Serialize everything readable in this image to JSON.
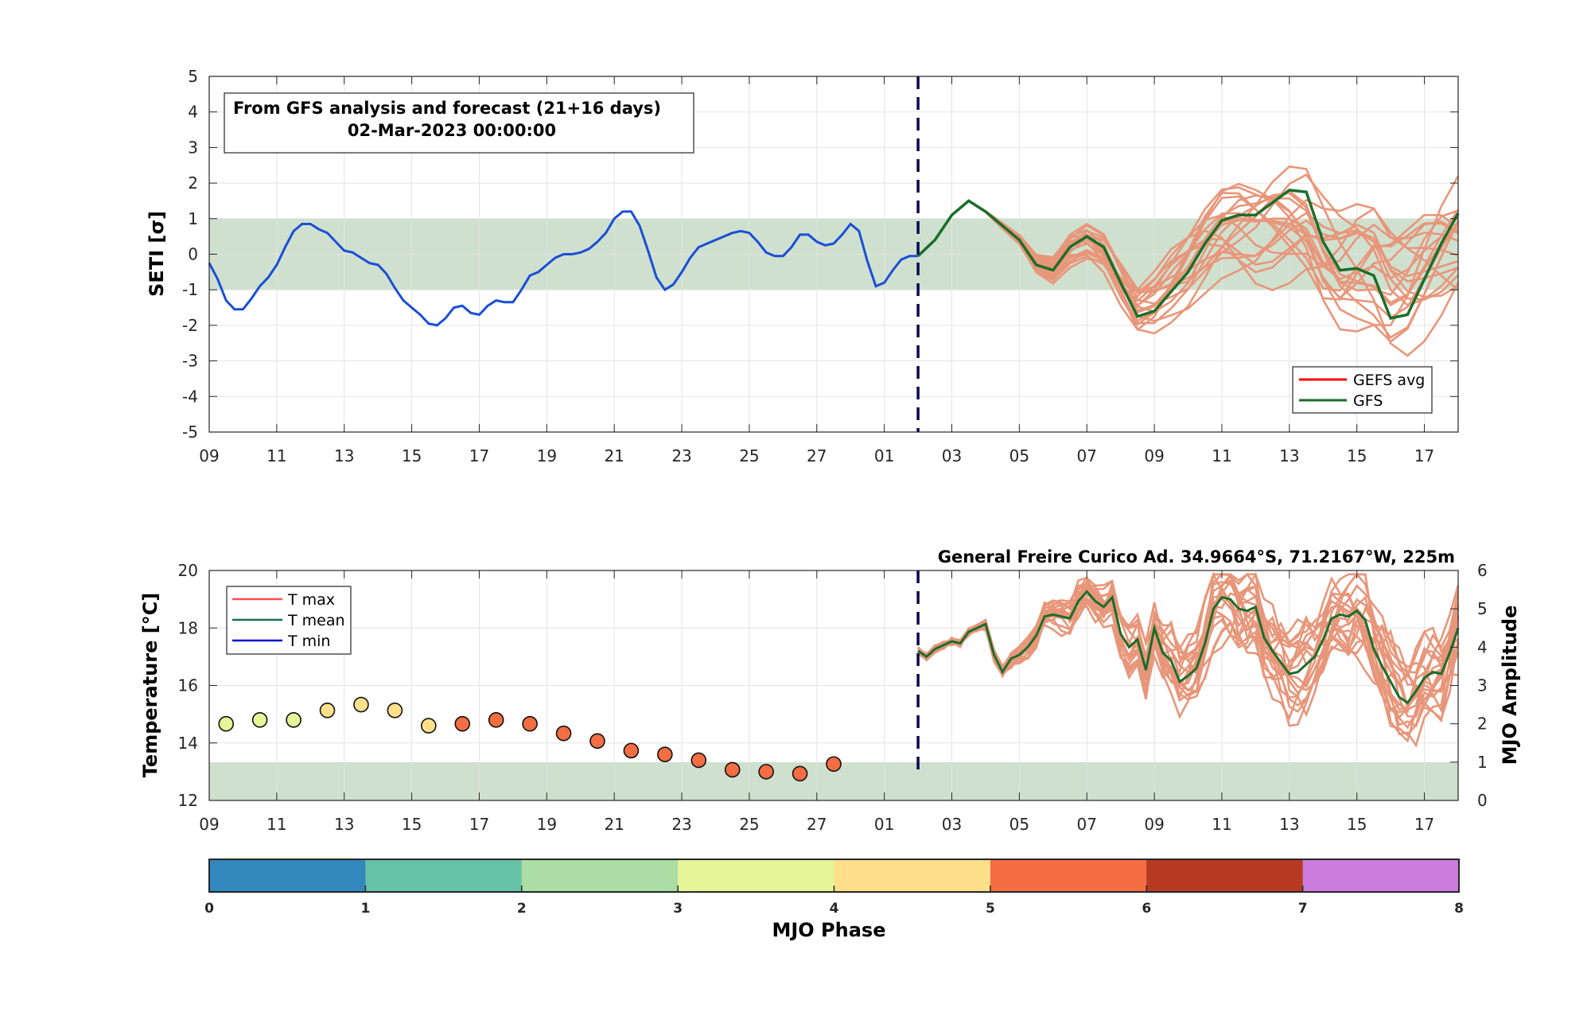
{
  "colors": {
    "band": "#cfe0cf",
    "analysis": "#1a4fd6",
    "ensemble": "#e8967a",
    "gfs": "#1b6e2a",
    "gefs_avg": "#ff0000",
    "now_line": "#0a0a50",
    "tmax": "#ff4d4d",
    "tmean": "#1a6e5a",
    "tmin": "#0000cc",
    "grid": "#e3e3e3"
  },
  "chart_data": [
    {
      "type": "line",
      "title_box": {
        "line1": "From GFS analysis and forecast (21+16 days)",
        "line2": "02-Mar-2023 00:00:00"
      },
      "ylabel": "SETI [σ]",
      "ylim": [
        -5,
        5
      ],
      "yticks": [
        "5",
        "4",
        "3",
        "2",
        "1",
        "0",
        "-1",
        "-2",
        "-3",
        "-4",
        "-5"
      ],
      "xlim_days": [
        0,
        37
      ],
      "xtick_labels": [
        "09",
        "11",
        "13",
        "15",
        "17",
        "19",
        "21",
        "23",
        "25",
        "27",
        "01",
        "03",
        "05",
        "07",
        "09",
        "11",
        "13",
        "15",
        "17"
      ],
      "band": [
        -1,
        1
      ],
      "forecast_start_day": 21,
      "legend": [
        "GEFS avg",
        "GFS"
      ],
      "analysis": {
        "x": [
          0,
          0.25,
          0.5,
          0.75,
          1,
          1.25,
          1.5,
          1.75,
          2,
          2.25,
          2.5,
          2.75,
          3,
          3.25,
          3.5,
          3.75,
          4,
          4.25,
          4.5,
          4.75,
          5,
          5.25,
          5.5,
          5.75,
          6,
          6.25,
          6.5,
          6.75,
          7,
          7.25,
          7.5,
          7.75,
          8,
          8.25,
          8.5,
          8.75,
          9,
          9.25,
          9.5,
          9.75,
          10,
          10.25,
          10.5,
          10.75,
          11,
          11.25,
          11.5,
          11.75,
          12,
          12.25,
          12.5,
          12.75,
          13,
          13.25,
          13.5,
          13.75,
          14,
          14.25,
          14.5,
          14.75,
          15,
          15.25,
          15.5,
          15.75,
          16,
          16.25,
          16.5,
          16.75,
          17,
          17.25,
          17.5,
          17.75,
          18,
          18.25,
          18.5,
          18.75,
          19,
          19.25,
          19.5,
          19.75,
          20,
          20.25,
          20.5,
          20.75,
          21
        ],
        "y": [
          -0.25,
          -0.7,
          -1.3,
          -1.55,
          -1.55,
          -1.25,
          -0.9,
          -0.65,
          -0.3,
          0.2,
          0.65,
          0.85,
          0.85,
          0.7,
          0.6,
          0.35,
          0.1,
          0.05,
          -0.1,
          -0.25,
          -0.3,
          -0.55,
          -0.95,
          -1.3,
          -1.5,
          -1.7,
          -1.95,
          -2.0,
          -1.8,
          -1.5,
          -1.45,
          -1.65,
          -1.7,
          -1.45,
          -1.3,
          -1.35,
          -1.35,
          -1.0,
          -0.6,
          -0.5,
          -0.3,
          -0.1,
          0.0,
          0.0,
          0.05,
          0.15,
          0.35,
          0.6,
          1.0,
          1.2,
          1.2,
          0.8,
          0.1,
          -0.65,
          -1.0,
          -0.85,
          -0.5,
          -0.1,
          0.2,
          0.3,
          0.4,
          0.5,
          0.6,
          0.65,
          0.6,
          0.35,
          0.05,
          -0.05,
          -0.05,
          0.2,
          0.55,
          0.55,
          0.35,
          0.25,
          0.3,
          0.55,
          0.85,
          0.65,
          -0.2,
          -0.9,
          -0.8,
          -0.45,
          -0.15,
          -0.05,
          -0.05
        ]
      },
      "gfs_forecast": {
        "x": [
          21,
          21.5,
          22,
          22.5,
          23,
          23.5,
          24,
          24.5,
          25,
          25.5,
          26,
          26.5,
          27,
          27.5,
          28,
          28.5,
          29,
          29.5,
          30,
          30.5,
          31,
          31.5,
          32,
          32.5,
          33,
          33.5,
          34,
          34.5,
          35,
          35.5,
          36,
          36.5,
          37
        ],
        "y": [
          -0.05,
          0.4,
          1.1,
          1.5,
          1.2,
          0.8,
          0.4,
          -0.3,
          -0.45,
          0.2,
          0.5,
          0.2,
          -0.8,
          -1.75,
          -1.6,
          -1.05,
          -0.5,
          0.3,
          0.95,
          1.1,
          1.1,
          1.45,
          1.8,
          1.75,
          0.35,
          -0.45,
          -0.4,
          -0.6,
          -1.8,
          -1.7,
          -0.7,
          0.3,
          1.15
        ]
      },
      "ensemble_members": 20
    },
    {
      "type": "scatter",
      "station": "General Freire Curico Ad. 34.9664°S, 71.2167°W, 225m",
      "ylabel_left": "Temperature [°C]",
      "ylabel_right": "MJO Amplitude",
      "ylim_left": [
        12,
        20
      ],
      "yticks_left": [
        "20",
        "18",
        "16",
        "14",
        "12"
      ],
      "ylim_right": [
        0,
        6
      ],
      "yticks_right": [
        "6",
        "5",
        "4",
        "3",
        "2",
        "1",
        "0"
      ],
      "band_mjo_amplitude": [
        0,
        1
      ],
      "legend": [
        "T max",
        "T mean",
        "T min"
      ],
      "mjo_points": {
        "x": [
          0.5,
          1.5,
          2.5,
          3.5,
          4.5,
          5.5,
          6.5,
          7.5,
          8.5,
          9.5,
          10.5,
          11.5,
          12.5,
          13.5,
          14.5,
          15.5,
          16.5,
          17.5,
          18.5
        ],
        "amplitude": [
          2.0,
          2.1,
          2.1,
          2.35,
          2.5,
          2.35,
          1.95,
          2.0,
          2.1,
          2.0,
          1.75,
          1.55,
          1.3,
          1.2,
          1.05,
          0.8,
          0.75,
          0.7,
          0.95
        ],
        "phase": [
          4,
          4,
          4,
          5,
          5,
          5,
          5,
          6,
          6,
          6,
          6,
          6,
          6,
          6,
          6,
          6,
          6,
          6,
          6
        ]
      },
      "forecast_amplitude": {
        "x": [
          21,
          21.25,
          21.5,
          21.75,
          22,
          22.25,
          22.5,
          22.75,
          23,
          23.25,
          23.5,
          23.75,
          24,
          24.25,
          24.5,
          24.75,
          25,
          25.25,
          25.5,
          25.75,
          26,
          26.25,
          26.5,
          26.75,
          27,
          27.25,
          27.5,
          27.75,
          28,
          28.25,
          28.5,
          28.75,
          29,
          29.25,
          29.5,
          29.75,
          30,
          30.25,
          30.5,
          30.75,
          31,
          31.25,
          31.5,
          31.75,
          32,
          32.25,
          32.5,
          32.75,
          33,
          33.25,
          33.5,
          33.75,
          34,
          34.25,
          34.5,
          34.75,
          35,
          35.25,
          35.5,
          35.75,
          36,
          36.25,
          36.5,
          36.75,
          37
        ],
        "y": [
          3.9,
          3.75,
          3.95,
          4.05,
          4.15,
          4.1,
          4.4,
          4.5,
          4.6,
          3.8,
          3.35,
          3.7,
          3.8,
          4.0,
          4.3,
          4.8,
          4.85,
          4.8,
          4.75,
          5.2,
          5.45,
          5.2,
          5.05,
          5.3,
          4.35,
          4.0,
          4.2,
          3.4,
          4.5,
          3.85,
          3.65,
          3.1,
          3.25,
          3.45,
          4.1,
          5.0,
          5.3,
          5.25,
          5.0,
          4.95,
          5.05,
          4.25,
          3.9,
          3.6,
          3.3,
          3.35,
          3.55,
          3.75,
          4.2,
          4.75,
          4.85,
          4.8,
          4.95,
          4.7,
          3.95,
          3.5,
          3.1,
          2.7,
          2.55,
          2.85,
          3.2,
          3.35,
          3.3,
          3.85,
          4.5
        ]
      },
      "colorbar": {
        "label": "MJO Phase",
        "ticks": [
          "0",
          "1",
          "2",
          "3",
          "4",
          "5",
          "6",
          "7",
          "8"
        ],
        "colors": [
          "#3288bd",
          "#66c2a5",
          "#abdda4",
          "#e6f598",
          "#fee08b",
          "#f46d43",
          "#b63a22",
          "#cc7cdc"
        ]
      }
    }
  ]
}
